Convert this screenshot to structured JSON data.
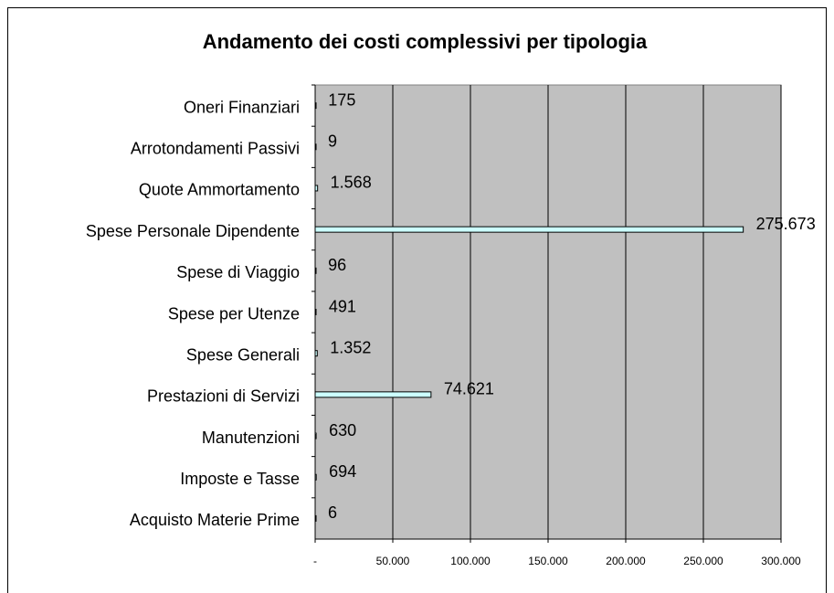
{
  "chart_data": {
    "type": "bar",
    "orientation": "horizontal",
    "title": "Andamento dei costi complessivi per tipologia",
    "categories": [
      "Oneri Finanziari",
      "Arrotondamenti Passivi",
      "Quote Ammortamento",
      "Spese Personale Dipendente",
      "Spese di Viaggio",
      "Spese per Utenze",
      "Spese Generali",
      "Prestazioni di Servizi",
      "Manutenzioni",
      "Imposte e Tasse",
      "Acquisto Materie Prime"
    ],
    "values": [
      175,
      9,
      1568,
      275673,
      96,
      491,
      1352,
      74621,
      630,
      694,
      6
    ],
    "value_labels": [
      "175",
      "9",
      "1.568",
      "275.673",
      "96",
      "491",
      "1.352",
      "74.621",
      "630",
      "694",
      "6"
    ],
    "color": "#ccffff",
    "xlim": [
      0,
      300000
    ],
    "xticks": [
      {
        "value": 0,
        "label": "-"
      },
      {
        "value": 50000,
        "label": "50.000"
      },
      {
        "value": 100000,
        "label": "100.000"
      },
      {
        "value": 150000,
        "label": "150.000"
      },
      {
        "value": 200000,
        "label": "200.000"
      },
      {
        "value": 250000,
        "label": "250.000"
      },
      {
        "value": 300000,
        "label": "300.000"
      }
    ],
    "grid": true
  }
}
